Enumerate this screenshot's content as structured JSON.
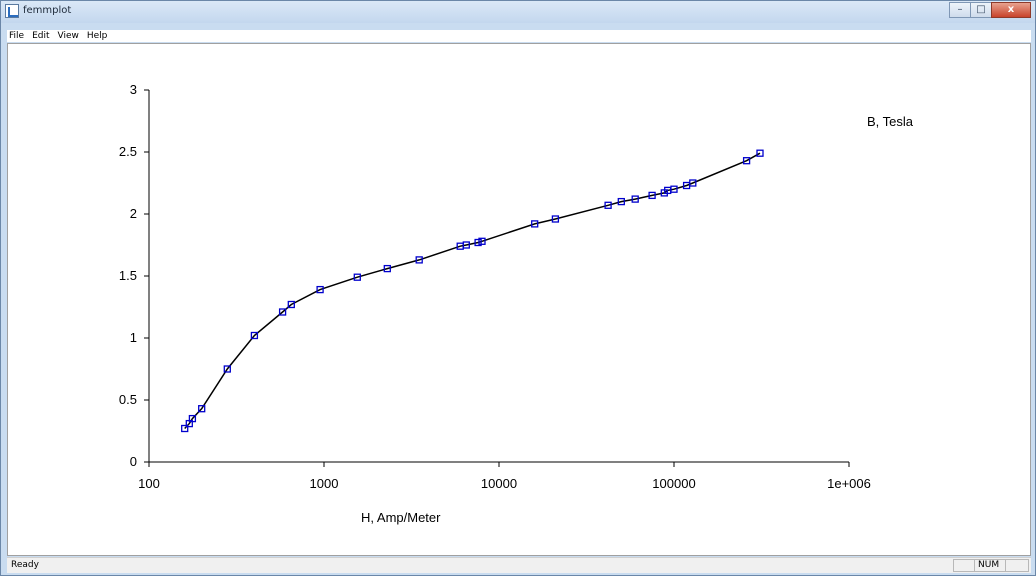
{
  "window": {
    "title": "femmplot",
    "buttons": {
      "minimize": "–",
      "maximize": "□",
      "close": "x"
    }
  },
  "menu": [
    "File",
    "Edit",
    "View",
    "Help"
  ],
  "status": {
    "text": "Ready",
    "num": "NUM"
  },
  "colors": {
    "marker": "#0000cc",
    "curve": "#000000",
    "axis": "#000000"
  },
  "chart_data": {
    "type": "scatter",
    "title": "",
    "xlabel": "H, Amp/Meter",
    "ylabel": "B, Tesla",
    "xscale": "log",
    "xlim": [
      100,
      1000000
    ],
    "ylim": [
      0,
      3
    ],
    "xticks": [
      "100",
      "1000",
      "10000",
      "100000",
      "1e+006"
    ],
    "yticks": [
      "0",
      "0.5",
      "1",
      "1.5",
      "2",
      "2.5",
      "3"
    ],
    "grid": false,
    "series": [
      {
        "markers": "square",
        "x": [
          160,
          170,
          177,
          200,
          280,
          400,
          580,
          650,
          950,
          1550,
          2300,
          3500,
          6000,
          6500,
          7600,
          8000,
          16000,
          21000,
          42000,
          50000,
          60000,
          75000,
          88000,
          92000,
          100000,
          118000,
          128000,
          260000,
          310000
        ],
        "y": [
          0.27,
          0.31,
          0.35,
          0.43,
          0.75,
          1.02,
          1.21,
          1.27,
          1.39,
          1.49,
          1.56,
          1.63,
          1.74,
          1.75,
          1.77,
          1.78,
          1.92,
          1.96,
          2.07,
          2.1,
          2.12,
          2.15,
          2.17,
          2.19,
          2.2,
          2.23,
          2.25,
          2.43,
          2.49
        ]
      }
    ]
  }
}
